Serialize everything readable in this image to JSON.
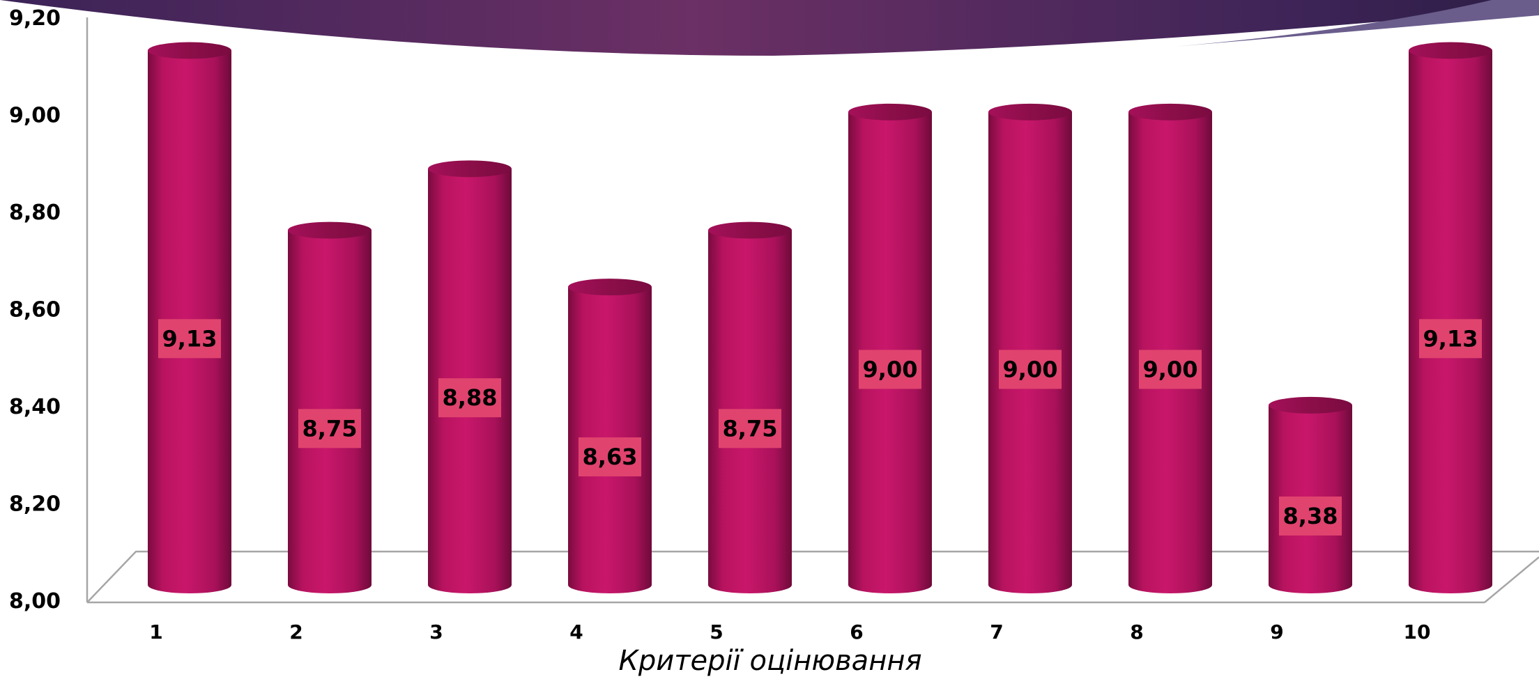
{
  "chart_data": {
    "type": "bar",
    "style": "3d-cylinder",
    "categories": [
      "1",
      "2",
      "3",
      "4",
      "5",
      "6",
      "7",
      "8",
      "9",
      "10"
    ],
    "values": [
      9.13,
      8.75,
      8.88,
      8.63,
      8.75,
      9.0,
      9.0,
      9.0,
      8.38,
      9.13
    ],
    "data_labels": [
      "9,13",
      "8,75",
      "8,88",
      "8,63",
      "8,75",
      "9,00",
      "9,00",
      "9,00",
      "8,38",
      "9,13"
    ],
    "title": "",
    "xlabel": "Критерії оцінювання",
    "ylabel": "",
    "ylim": [
      8.0,
      9.2
    ],
    "yticks": [
      8.0,
      8.2,
      8.4,
      8.6,
      8.8,
      9.0,
      9.2
    ],
    "ytick_labels": [
      "8,00",
      "8,20",
      "8,40",
      "8,60",
      "8,80",
      "9,00",
      "9,20"
    ],
    "grid": false,
    "legend": "none",
    "colors": {
      "bar": "#b8135f",
      "bar_dark": "#6e0a3a",
      "bar_light": "#d6307a",
      "bar_top": "#8f0f4b",
      "label_bg": "#e0436e",
      "axis": "#a6a6a6",
      "banner_dark": "#3b2357",
      "banner_mid": "#6b3065"
    }
  }
}
